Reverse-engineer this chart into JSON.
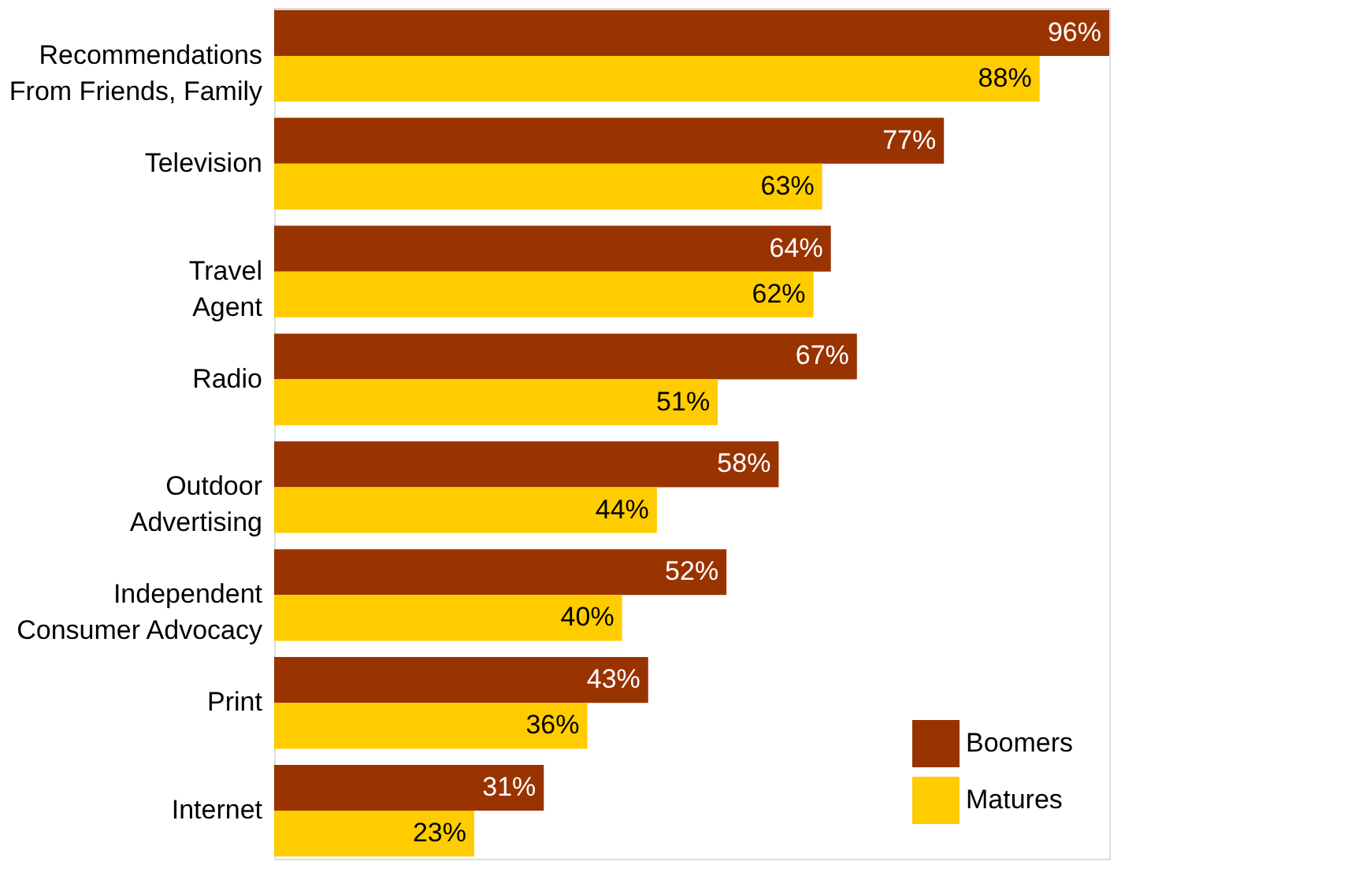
{
  "chart_data": {
    "type": "bar",
    "orientation": "horizontal",
    "legend": "bottom right",
    "grid": false,
    "categories": [
      "Recommendations\nFrom Friends, Family",
      "Television",
      "Travel\nAgent",
      "Radio",
      "Outdoor\nAdvertising",
      "Independent\nConsumer Advocacy",
      "Print",
      "Internet"
    ],
    "series": [
      {
        "name": "Boomers",
        "color": "#993300",
        "values": [
          96,
          77,
          64,
          67,
          58,
          52,
          43,
          31
        ],
        "value_labels": [
          "96%",
          "77%",
          "64%",
          "67%",
          "58%",
          "52%",
          "43%",
          "31%"
        ]
      },
      {
        "name": "Matures",
        "color": "#ffcc00",
        "values": [
          88,
          63,
          62,
          51,
          44,
          40,
          36,
          23
        ],
        "value_labels": [
          "88%",
          "63%",
          "62%",
          "51%",
          "44%",
          "40%",
          "36%",
          "23%"
        ]
      }
    ]
  }
}
